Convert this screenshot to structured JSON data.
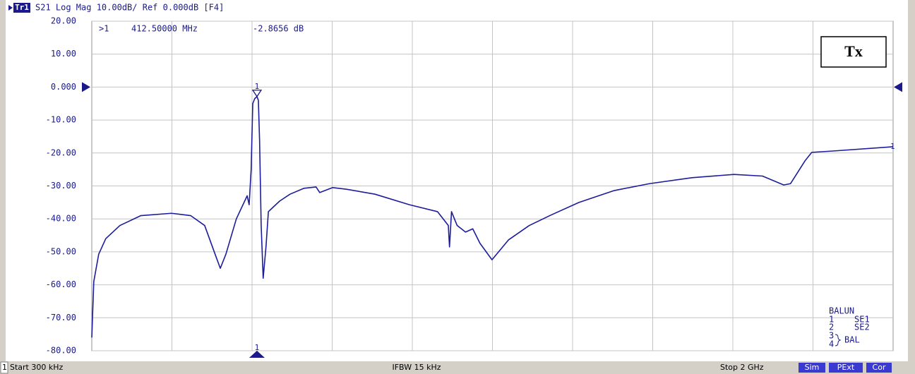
{
  "header": {
    "trace": "Tr1",
    "text": "S21 Log Mag 10.00dB/ Ref 0.000dB [F4]"
  },
  "chart_data": {
    "type": "line",
    "x": [
      0.3,
      5.3,
      17.6,
      35.2,
      70.5,
      123,
      199,
      247,
      282,
      308,
      321,
      335,
      361,
      388,
      393,
      398,
      402,
      407,
      412.5,
      416,
      419,
      423,
      428,
      435,
      441,
      469,
      495,
      530,
      560,
      569,
      601,
      636,
      707,
      793,
      863,
      890,
      893,
      898,
      912,
      933,
      951,
      969,
      999,
      1040,
      1092,
      1145,
      1216,
      1304,
      1392,
      1498,
      1603,
      1674,
      1727,
      1744,
      1780,
      1797,
      1850,
      2000
    ],
    "series": [
      {
        "color": "#1c1c9c",
        "values": [
          -76,
          -59,
          -50.7,
          -46,
          -42,
          -39,
          -38.3,
          -39,
          -42,
          -50.7,
          -55,
          -50.7,
          -40,
          -33,
          -35.7,
          -25,
          -5,
          -3.5,
          -2.87,
          -4,
          -16,
          -42,
          -58,
          -48.5,
          -37.8,
          -34.6,
          -32.5,
          -30.7,
          -30.3,
          -32,
          -30.5,
          -31,
          -32.5,
          -35.7,
          -37.8,
          -42,
          -48.5,
          -37.8,
          -42,
          -44,
          -43,
          -47.4,
          -52.4,
          -46.4,
          -42,
          -38.9,
          -35,
          -31.4,
          -29.3,
          -27.5,
          -26.5,
          -27,
          -29.7,
          -29.3,
          -22.4,
          -19.8,
          -19.4,
          -18.1
        ]
      }
    ],
    "xlim": [
      0.3,
      2000
    ],
    "ylim": [
      -80,
      20
    ],
    "yticks": [
      {
        "value": 20,
        "label": "20.00"
      },
      {
        "value": 10,
        "label": "10.00"
      },
      {
        "value": 0,
        "label": "0.000"
      },
      {
        "value": -10,
        "label": "-10.00"
      },
      {
        "value": -20,
        "label": "-20.00"
      },
      {
        "value": -30,
        "label": "-30.00"
      },
      {
        "value": -40,
        "label": "-40.00"
      },
      {
        "value": -50,
        "label": "-50.00"
      },
      {
        "value": -60,
        "label": "-60.00"
      },
      {
        "value": -70,
        "label": "-70.00"
      },
      {
        "value": -80,
        "label": "-80.00"
      }
    ],
    "grid": true,
    "ref_value": 0,
    "marker": {
      "label": "1",
      "readout_prefix": ">1",
      "x": 412.5,
      "value": -2.8656,
      "x_label": "412.50000 MHz",
      "value_label": "-2.8656 dB"
    },
    "annotation": "Tx",
    "legend_box": {
      "title": "BALUN",
      "entries": [
        {
          "port": "1",
          "name": "SE1"
        },
        {
          "port": "2",
          "name": "SE2"
        },
        {
          "ports": [
            "3",
            "4"
          ],
          "name": "BAL"
        }
      ]
    }
  },
  "status_bar": {
    "channel": "1",
    "start": "Start 300 kHz",
    "ifbw": "IFBW 15 kHz",
    "stop": "Stop 2 GHz",
    "badges": [
      "Sim",
      "PExt",
      "Cor"
    ]
  }
}
